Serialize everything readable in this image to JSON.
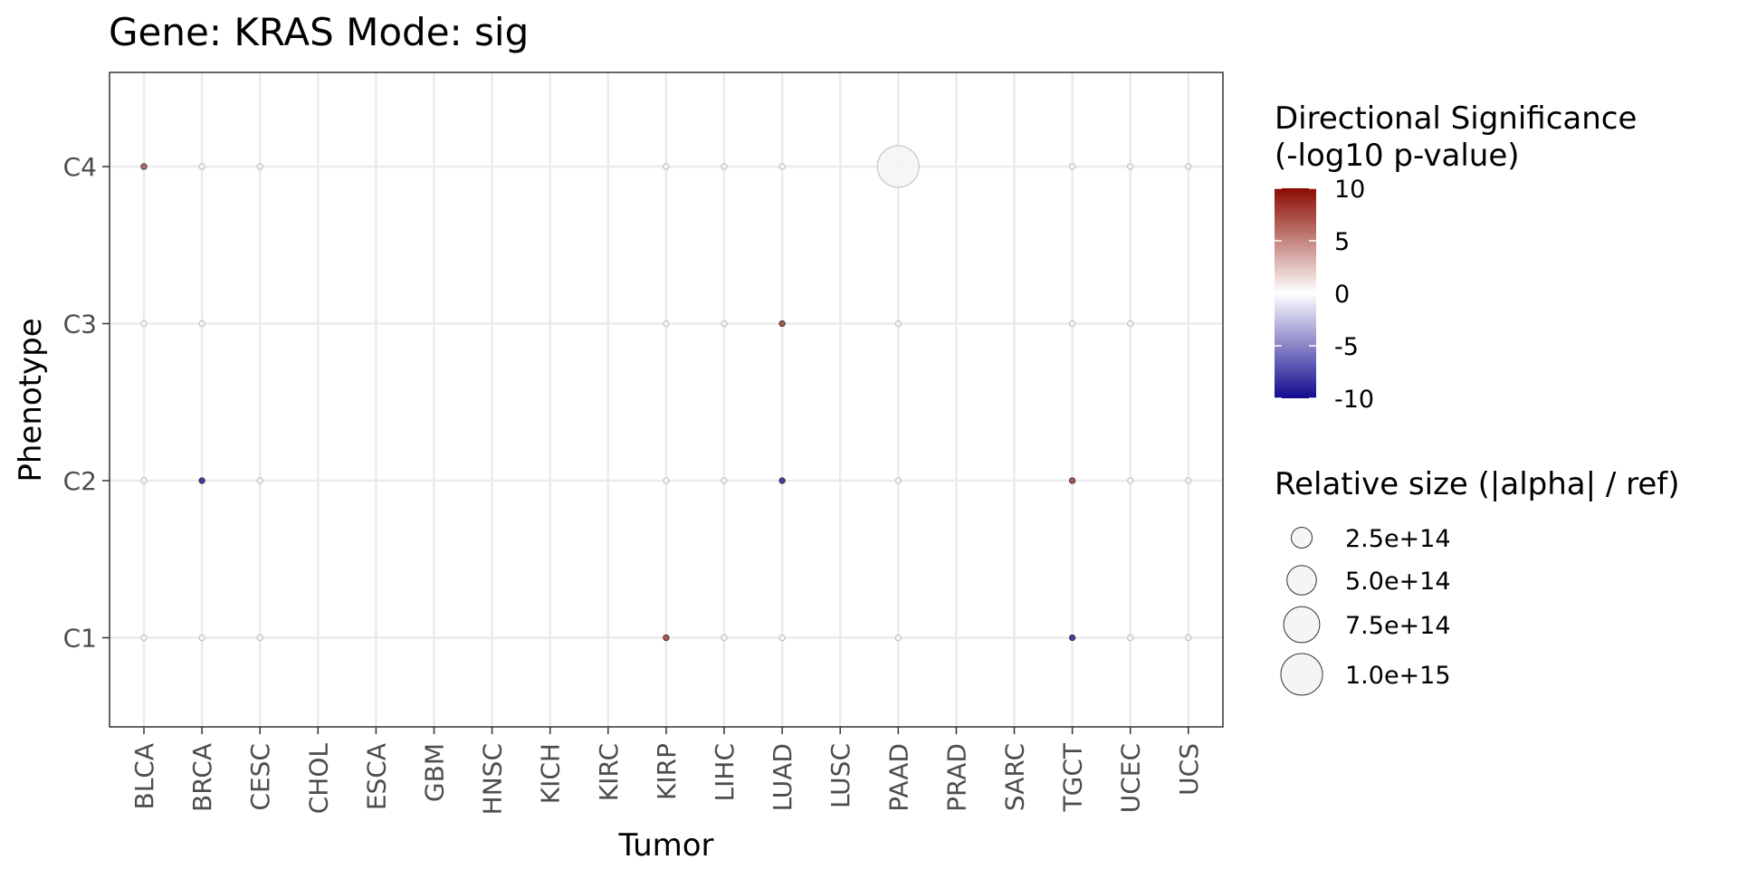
{
  "chart_data": {
    "type": "scatter",
    "title": "Gene: KRAS Mode: sig",
    "xlabel": "Tumor",
    "ylabel": "Phenotype",
    "categories_x": [
      "BLCA",
      "BRCA",
      "CESC",
      "CHOL",
      "ESCA",
      "GBM",
      "HNSC",
      "KICH",
      "KIRC",
      "KIRP",
      "LIHC",
      "LUAD",
      "LUSC",
      "PAAD",
      "PRAD",
      "SARC",
      "TGCT",
      "UCEC",
      "UCS"
    ],
    "categories_y": [
      "C1",
      "C2",
      "C3",
      "C4"
    ],
    "grid": true,
    "points": [
      {
        "x": "BLCA",
        "y": "C4",
        "sig": 6,
        "size": 5000000000000.0
      },
      {
        "x": "BRCA",
        "y": "C4",
        "sig": 0,
        "size": 5000000000000.0
      },
      {
        "x": "CESC",
        "y": "C4",
        "sig": 0,
        "size": 5000000000000.0
      },
      {
        "x": "KIRP",
        "y": "C4",
        "sig": 0,
        "size": 5000000000000.0
      },
      {
        "x": "LIHC",
        "y": "C4",
        "sig": 0,
        "size": 5000000000000.0
      },
      {
        "x": "LUAD",
        "y": "C4",
        "sig": 0,
        "size": 5000000000000.0
      },
      {
        "x": "PAAD",
        "y": "C4",
        "sig": 0,
        "size": 1000000000000000.0
      },
      {
        "x": "TGCT",
        "y": "C4",
        "sig": 0,
        "size": 5000000000000.0
      },
      {
        "x": "UCEC",
        "y": "C4",
        "sig": 0,
        "size": 5000000000000.0
      },
      {
        "x": "UCS",
        "y": "C4",
        "sig": 0,
        "size": 5000000000000.0
      },
      {
        "x": "BLCA",
        "y": "C3",
        "sig": 0,
        "size": 5000000000000.0
      },
      {
        "x": "BRCA",
        "y": "C3",
        "sig": 0,
        "size": 5000000000000.0
      },
      {
        "x": "KIRP",
        "y": "C3",
        "sig": 0,
        "size": 5000000000000.0
      },
      {
        "x": "LIHC",
        "y": "C3",
        "sig": 0,
        "size": 5000000000000.0
      },
      {
        "x": "LUAD",
        "y": "C3",
        "sig": 7,
        "size": 5000000000000.0
      },
      {
        "x": "PAAD",
        "y": "C3",
        "sig": 0,
        "size": 5000000000000.0
      },
      {
        "x": "TGCT",
        "y": "C3",
        "sig": 0,
        "size": 5000000000000.0
      },
      {
        "x": "UCEC",
        "y": "C3",
        "sig": 0,
        "size": 5000000000000.0
      },
      {
        "x": "BLCA",
        "y": "C2",
        "sig": 0,
        "size": 5000000000000.0
      },
      {
        "x": "BRCA",
        "y": "C2",
        "sig": -8,
        "size": 5000000000000.0
      },
      {
        "x": "CESC",
        "y": "C2",
        "sig": 0,
        "size": 5000000000000.0
      },
      {
        "x": "KIRP",
        "y": "C2",
        "sig": 0,
        "size": 5000000000000.0
      },
      {
        "x": "LIHC",
        "y": "C2",
        "sig": 0,
        "size": 5000000000000.0
      },
      {
        "x": "LUAD",
        "y": "C2",
        "sig": -8,
        "size": 5000000000000.0
      },
      {
        "x": "PAAD",
        "y": "C2",
        "sig": 0,
        "size": 5000000000000.0
      },
      {
        "x": "TGCT",
        "y": "C2",
        "sig": 7,
        "size": 5000000000000.0
      },
      {
        "x": "UCEC",
        "y": "C2",
        "sig": 0,
        "size": 5000000000000.0
      },
      {
        "x": "UCS",
        "y": "C2",
        "sig": 0,
        "size": 5000000000000.0
      },
      {
        "x": "BLCA",
        "y": "C1",
        "sig": 0,
        "size": 5000000000000.0
      },
      {
        "x": "BRCA",
        "y": "C1",
        "sig": 0,
        "size": 5000000000000.0
      },
      {
        "x": "CESC",
        "y": "C1",
        "sig": 0,
        "size": 5000000000000.0
      },
      {
        "x": "KIRP",
        "y": "C1",
        "sig": 7,
        "size": 5000000000000.0
      },
      {
        "x": "LIHC",
        "y": "C1",
        "sig": 0,
        "size": 5000000000000.0
      },
      {
        "x": "LUAD",
        "y": "C1",
        "sig": 0,
        "size": 5000000000000.0
      },
      {
        "x": "PAAD",
        "y": "C1",
        "sig": 0,
        "size": 5000000000000.0
      },
      {
        "x": "TGCT",
        "y": "C1",
        "sig": -8,
        "size": 5000000000000.0
      },
      {
        "x": "UCEC",
        "y": "C1",
        "sig": 0,
        "size": 5000000000000.0
      },
      {
        "x": "UCS",
        "y": "C1",
        "sig": 0,
        "size": 5000000000000.0
      }
    ],
    "color_legend": {
      "title_lines": [
        "Directional Significance",
        "(-log10 p-value)"
      ],
      "range": [
        -10,
        10
      ],
      "ticks": [
        10,
        5,
        0,
        -5,
        -10
      ],
      "tick_labels": [
        "10",
        "5",
        "0",
        "-5",
        "-10"
      ],
      "colors": {
        "high": "#8b0a00",
        "mid": "#ffffff",
        "low": "#120a8f"
      }
    },
    "size_legend": {
      "title": "Relative size (|alpha| / ref)",
      "values": [
        250000000000000.0,
        500000000000000.0,
        750000000000000.0,
        1000000000000000.0
      ],
      "labels": [
        "2.5e+14",
        "5.0e+14",
        "7.5e+14",
        "1.0e+15"
      ]
    }
  }
}
